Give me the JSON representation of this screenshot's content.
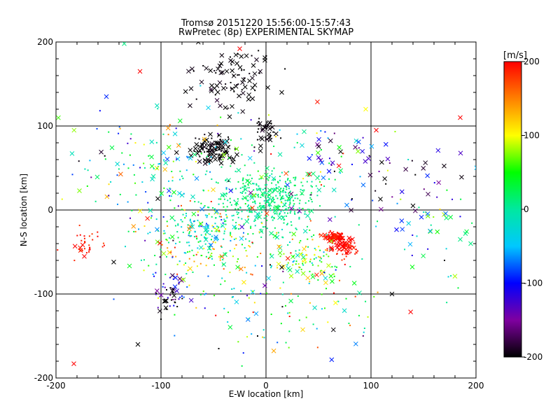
{
  "chart_data": {
    "type": "scatter",
    "title": "Tromsø 20151220 15:56:00-15:57:43",
    "subtitle": "RwPretec (8p) EXPERIMENTAL SKYMAP",
    "xlabel": "E-W location [km]",
    "ylabel": "N-S location [km]",
    "xlim": [
      -200,
      200
    ],
    "ylim": [
      -200,
      200
    ],
    "x_ticks": [
      "-200",
      "-100",
      "0",
      "100",
      "200"
    ],
    "y_ticks": [
      "-200",
      "-100",
      "0",
      "100",
      "200"
    ],
    "grid": true,
    "markers": [
      "dot",
      "cross"
    ],
    "colorbar": {
      "label": "[m/s]",
      "min": -200,
      "max": 200,
      "ticks": [
        "-200",
        "-100",
        "0",
        "100",
        "200"
      ],
      "colormap": [
        "#000000",
        "#7f00a0",
        "#0000ff",
        "#00c8ff",
        "#00e8a0",
        "#00ff00",
        "#ffff00",
        "#ff8000",
        "#ff0000"
      ]
    },
    "clusters": [
      {
        "x": 0,
        "y": 10,
        "sx": 25,
        "sy": 18,
        "v": 10,
        "vs": 12,
        "n": 420,
        "cross": 0.1
      },
      {
        "x": -50,
        "y": 72,
        "sx": 10,
        "sy": 8,
        "v": -200,
        "vs": 5,
        "n": 120,
        "cross": 0.5
      },
      {
        "x": -30,
        "y": 155,
        "sx": 18,
        "sy": 22,
        "v": -200,
        "vs": 5,
        "n": 90,
        "cross": 0.6
      },
      {
        "x": 0,
        "y": 92,
        "sx": 6,
        "sy": 10,
        "v": -200,
        "vs": 5,
        "n": 40,
        "cross": 0.5
      },
      {
        "x": 65,
        "y": -32,
        "sx": 5,
        "sy": 3,
        "v": 195,
        "vs": 8,
        "n": 70,
        "cross": 0.4
      },
      {
        "x": 75,
        "y": -45,
        "sx": 6,
        "sy": 6,
        "v": 195,
        "vs": 8,
        "n": 70,
        "cross": 0.4
      },
      {
        "x": 40,
        "y": -60,
        "sx": 18,
        "sy": 14,
        "v": 60,
        "vs": 60,
        "n": 110,
        "cross": 0.25
      },
      {
        "x": -60,
        "y": -40,
        "sx": 35,
        "sy": 30,
        "v": 40,
        "vs": 80,
        "n": 230,
        "cross": 0.15
      },
      {
        "x": -60,
        "y": -25,
        "sx": 20,
        "sy": 12,
        "v": -20,
        "vs": 30,
        "n": 80,
        "cross": 0.15
      },
      {
        "x": -90,
        "y": -95,
        "sx": 8,
        "sy": 10,
        "v": -130,
        "vs": 30,
        "n": 30,
        "cross": 0.4
      },
      {
        "x": -95,
        "y": -105,
        "sx": 8,
        "sy": 8,
        "v": -200,
        "vs": 5,
        "n": 18,
        "cross": 0.5
      },
      {
        "x": -100,
        "y": 55,
        "sx": 50,
        "sy": 30,
        "v": 0,
        "vs": 80,
        "n": 160,
        "cross": 0.3
      },
      {
        "x": -170,
        "y": -40,
        "sx": 8,
        "sy": 10,
        "v": 190,
        "vs": 10,
        "n": 35,
        "cross": 0.2
      },
      {
        "x": 120,
        "y": 40,
        "sx": 50,
        "sy": 25,
        "v": -150,
        "vs": 60,
        "n": 55,
        "cross": 0.6
      },
      {
        "x": 150,
        "y": -20,
        "sx": 30,
        "sy": 30,
        "v": 0,
        "vs": 60,
        "n": 40,
        "cross": 0.4
      },
      {
        "x": 20,
        "y": -110,
        "sx": 50,
        "sy": 35,
        "v": 30,
        "vs": 100,
        "n": 110,
        "cross": 0.2
      },
      {
        "x": 60,
        "y": 60,
        "sx": 40,
        "sy": 30,
        "v": -30,
        "vs": 120,
        "n": 60,
        "cross": 0.4
      }
    ],
    "points": [
      {
        "x": -135,
        "y": 198,
        "v": 10,
        "m": "cross"
      },
      {
        "x": -120,
        "y": 165,
        "v": 200,
        "m": "cross"
      },
      {
        "x": -152,
        "y": 135,
        "v": -90,
        "m": "cross"
      },
      {
        "x": -183,
        "y": -183,
        "v": 200,
        "m": "cross"
      },
      {
        "x": -122,
        "y": -160,
        "v": -200,
        "m": "cross"
      },
      {
        "x": -145,
        "y": -62,
        "v": -200,
        "m": "cross"
      },
      {
        "x": -25,
        "y": 192,
        "v": 200,
        "m": "cross"
      },
      {
        "x": 185,
        "y": 110,
        "v": 200,
        "m": "cross"
      },
      {
        "x": 190,
        "y": -28,
        "v": 10,
        "m": "cross"
      },
      {
        "x": 195,
        "y": -40,
        "v": 10,
        "m": "cross"
      },
      {
        "x": 120,
        "y": -100,
        "v": -200,
        "m": "cross"
      },
      {
        "x": 15,
        "y": 140,
        "v": -200,
        "m": "cross"
      },
      {
        "x": -8,
        "y": -150,
        "v": -200,
        "m": "dot"
      },
      {
        "x": -45,
        "y": -165,
        "v": -200,
        "m": "dot"
      },
      {
        "x": -100,
        "y": -130,
        "v": -200,
        "m": "dot"
      },
      {
        "x": 95,
        "y": 120,
        "v": 100,
        "m": "cross"
      },
      {
        "x": 105,
        "y": 95,
        "v": 200,
        "m": "cross"
      },
      {
        "x": 140,
        "y": 5,
        "v": -200,
        "m": "cross"
      },
      {
        "x": 170,
        "y": -60,
        "v": -200,
        "m": "dot"
      },
      {
        "x": 185,
        "y": -35,
        "v": 10,
        "m": "cross"
      }
    ]
  }
}
